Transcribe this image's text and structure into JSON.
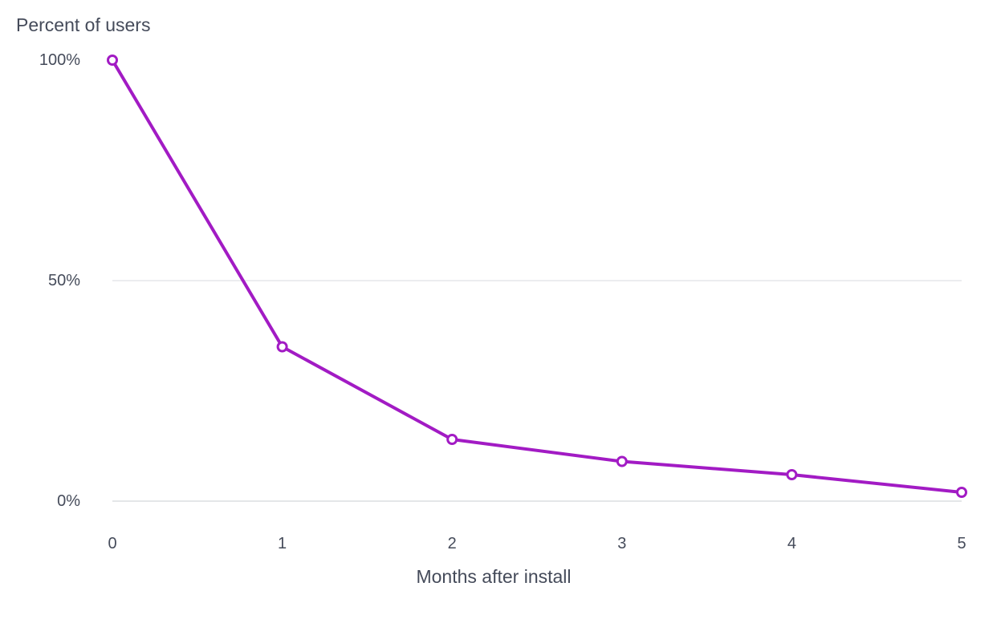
{
  "chart_data": {
    "type": "line",
    "ylabel": "Percent of users",
    "xlabel": "Months after install",
    "x": [
      0,
      1,
      2,
      3,
      4,
      5
    ],
    "series": [
      {
        "values": [
          100,
          35,
          14,
          9,
          6,
          2
        ],
        "color": "#a21bc4"
      }
    ],
    "y_ticks": [
      "100%",
      "50%",
      "0%"
    ],
    "x_ticks": [
      "0",
      "1",
      "2",
      "3",
      "4",
      "5"
    ],
    "xlim": [
      0,
      5
    ],
    "ylim": [
      0,
      100
    ],
    "grid": true,
    "marker": "hollow-circle"
  }
}
